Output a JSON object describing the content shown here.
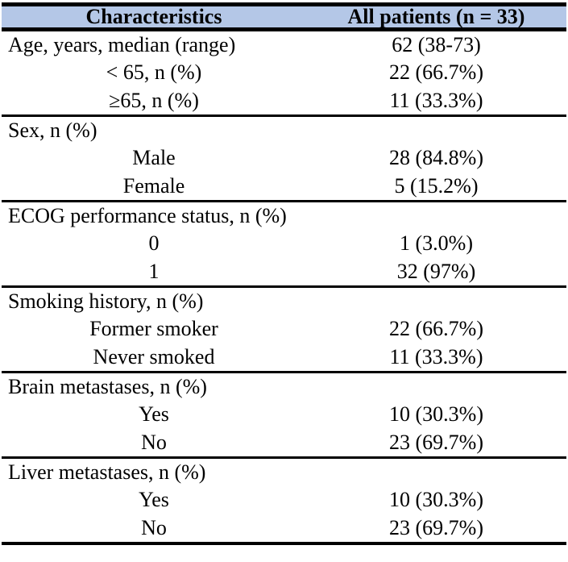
{
  "colors": {
    "header_bg": "#b4c7e7",
    "border": "#000000",
    "text": "#000000",
    "page_bg": "#ffffff"
  },
  "table": {
    "columns": [
      "Characteristics",
      "All patients (n = 33)"
    ],
    "sections": [
      {
        "rows": [
          {
            "label": "Age, years, median (range)",
            "value": "62 (38-73)"
          },
          {
            "label": "< 65, n (%)",
            "value": "22 (66.7%)"
          },
          {
            "label": "≥65, n (%)",
            "value": "11 (33.3%)"
          }
        ]
      },
      {
        "rows": [
          {
            "label": "Sex, n (%)",
            "value": ""
          },
          {
            "label": "Male",
            "value": "28 (84.8%)"
          },
          {
            "label": "Female",
            "value": "5 (15.2%)"
          }
        ]
      },
      {
        "rows": [
          {
            "label": "ECOG performance status, n (%)",
            "value": ""
          },
          {
            "label": "0",
            "value": "1 (3.0%)"
          },
          {
            "label": "1",
            "value": "32 (97%)"
          }
        ]
      },
      {
        "rows": [
          {
            "label": "Smoking history, n (%)",
            "value": ""
          },
          {
            "label": "Former smoker",
            "value": "22 (66.7%)"
          },
          {
            "label": "Never smoked",
            "value": "11 (33.3%)"
          }
        ]
      },
      {
        "rows": [
          {
            "label": "Brain metastases, n (%)",
            "value": ""
          },
          {
            "label": "Yes",
            "value": "10 (30.3%)"
          },
          {
            "label": "No",
            "value": "23 (69.7%)"
          }
        ]
      },
      {
        "rows": [
          {
            "label": "Liver metastases, n (%)",
            "value": ""
          },
          {
            "label": "Yes",
            "value": "10 (30.3%)"
          },
          {
            "label": "No",
            "value": "23 (69.7%)"
          }
        ]
      }
    ]
  }
}
